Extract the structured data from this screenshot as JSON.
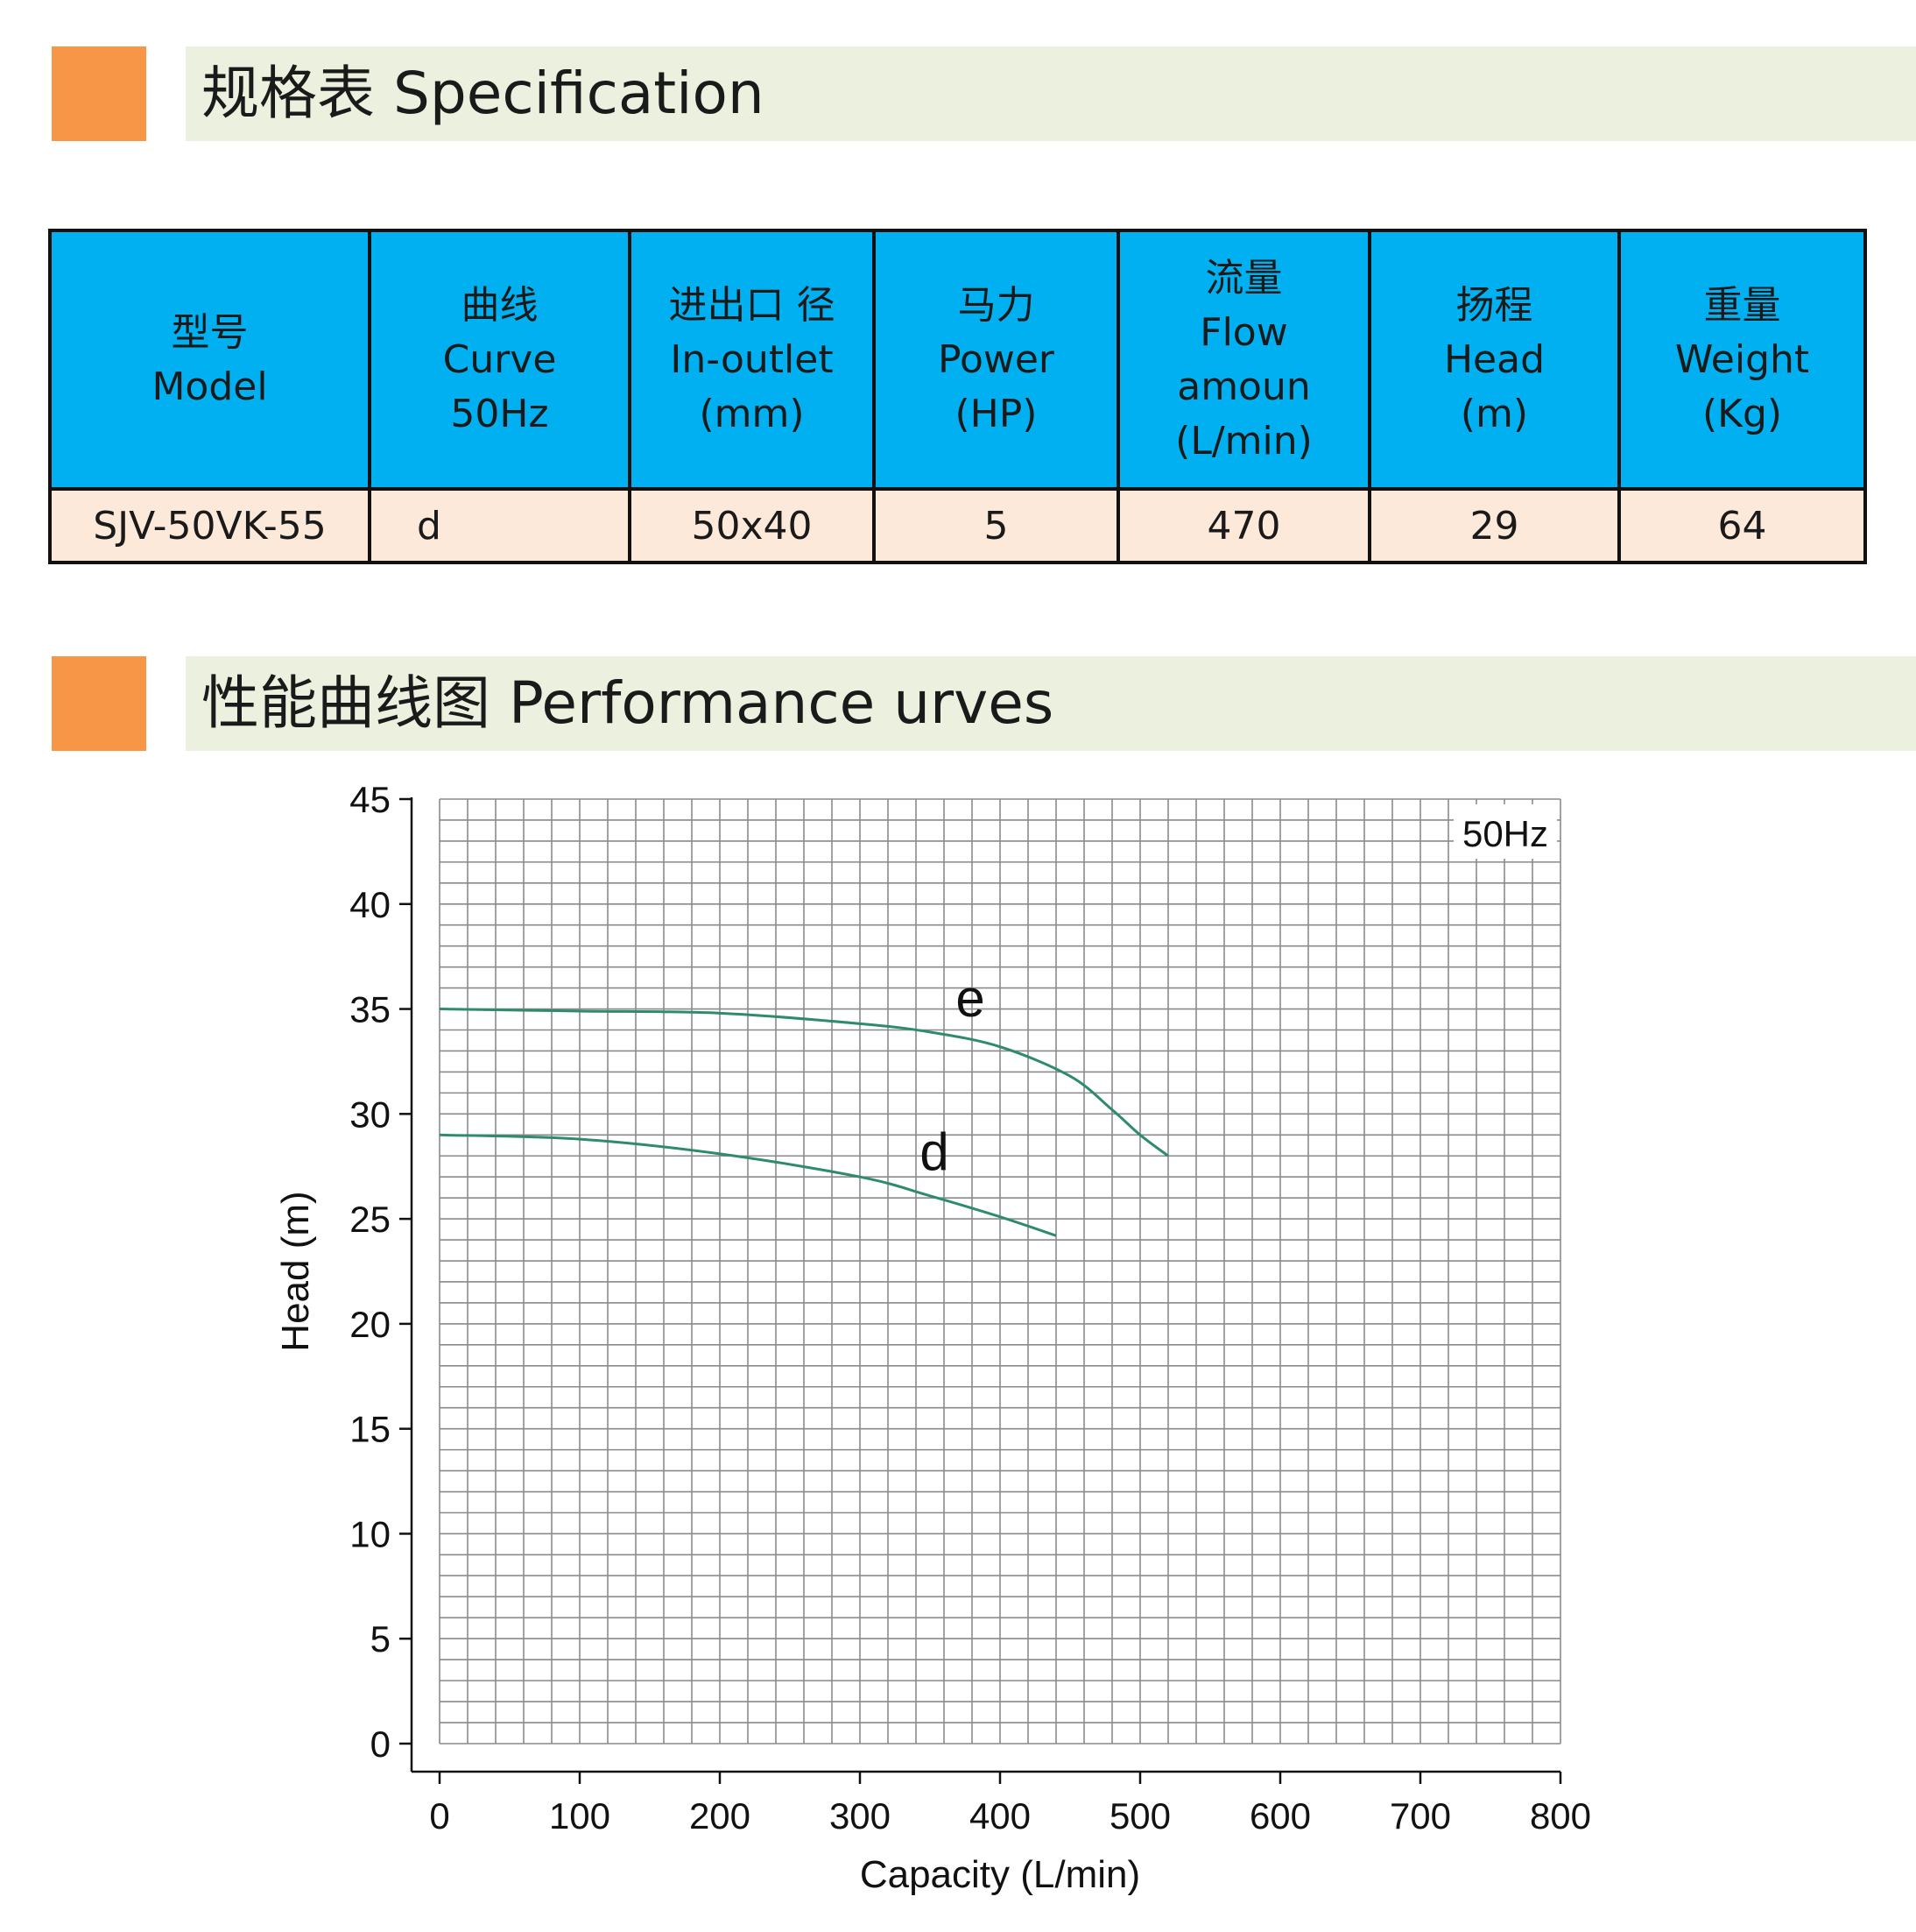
{
  "spec_section": {
    "title": "规格表 Specification"
  },
  "table": {
    "headers": [
      [
        "型号",
        "Model"
      ],
      [
        "曲线",
        "Curve",
        "50Hz"
      ],
      [
        "进出口 径",
        "In-outlet",
        "(mm)"
      ],
      [
        "马力",
        "Power",
        "(HP)"
      ],
      [
        "流量",
        "Flow",
        "amoun",
        "(L/min)"
      ],
      [
        "扬程",
        "Head",
        "(m)"
      ],
      [
        "重量",
        "Weight",
        "(Kg)"
      ]
    ],
    "rows": [
      [
        "SJV-50VK-55",
        "d",
        "50x40",
        "5",
        "470",
        "29",
        "64"
      ]
    ]
  },
  "perf_section": {
    "title": "性能曲线图 Performance urves"
  },
  "chart_data": {
    "type": "line",
    "annotation": "50Hz",
    "xlabel": "Capacity (L/min)",
    "ylabel": "Head (m)",
    "xlim": [
      0,
      800
    ],
    "ylim": [
      0,
      45
    ],
    "x_ticks": [
      0,
      100,
      200,
      300,
      400,
      500,
      600,
      700,
      800
    ],
    "y_ticks": [
      0,
      5,
      10,
      15,
      20,
      25,
      30,
      35,
      40,
      45
    ],
    "grid": true,
    "line_color": "#2e8b6e",
    "series": [
      {
        "name": "e",
        "x": [
          0,
          100,
          200,
          300,
          350,
          400,
          450,
          480,
          500,
          520
        ],
        "y": [
          35,
          34.9,
          34.8,
          34.3,
          33.9,
          33.2,
          31.8,
          30.2,
          29,
          28
        ]
      },
      {
        "name": "d",
        "x": [
          0,
          100,
          200,
          300,
          350,
          400,
          440
        ],
        "y": [
          29,
          28.8,
          28.1,
          27,
          26.1,
          25.1,
          24.2
        ]
      }
    ]
  }
}
